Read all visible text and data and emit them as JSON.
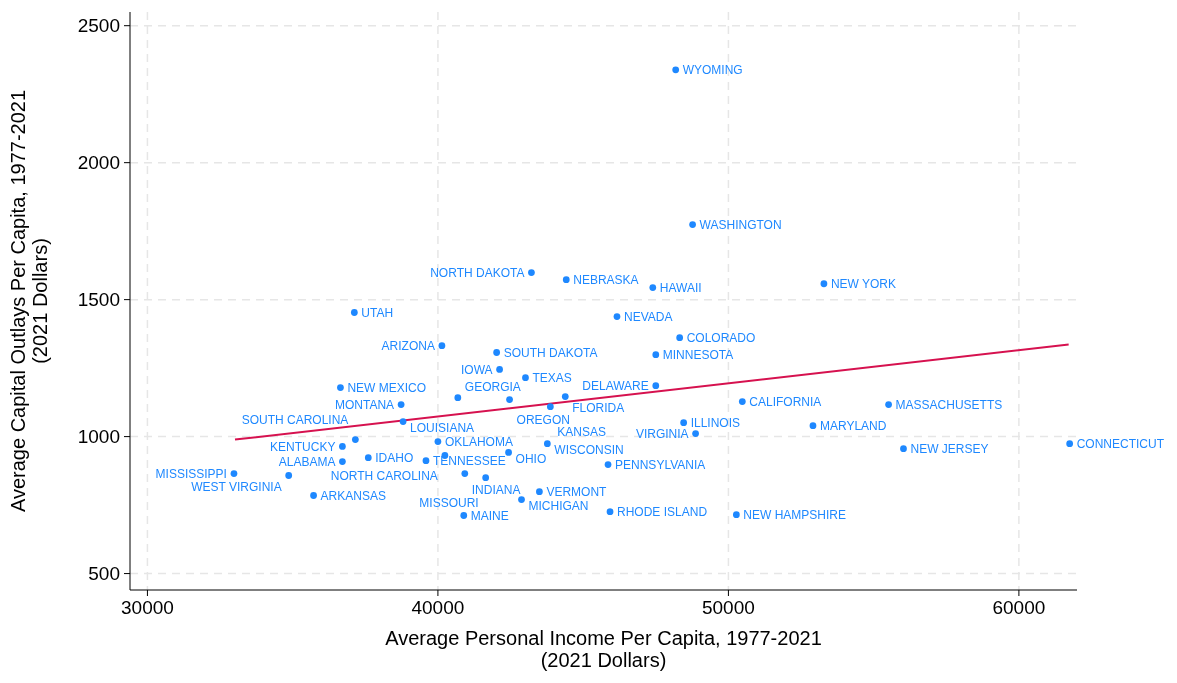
{
  "chart_data": {
    "type": "scatter",
    "xlabel": "Average Personal Income Per Capita, 1977-2021\n(2021 Dollars)",
    "ylabel": "Average Capital Outlays Per Capita, 1977-2021\n(2021 Dollars)",
    "xlim": [
      29400,
      62000
    ],
    "xticks": [
      30000,
      40000,
      50000,
      60000
    ],
    "ylim": [
      440,
      2550
    ],
    "yticks": [
      500,
      1000,
      1500,
      2000,
      2500
    ],
    "grid": true,
    "series": [
      {
        "marker": "circle",
        "color": "#1e88ff",
        "x": [
          48185,
          48767,
          43219,
          44418,
          47397,
          53288,
          37123,
          46164,
          48322,
          40137,
          42021,
          47500,
          42123,
          43014,
          36644,
          47500,
          40685,
          42466,
          44384,
          43870,
          50479,
          55514,
          38733,
          38801,
          48459,
          52911,
          48870,
          37158,
          40000,
          43767,
          61747,
          36712,
          40240,
          42432,
          56027,
          39589,
          37603,
          36712,
          45856,
          32979,
          34863,
          40925,
          41644,
          43493,
          42877,
          35719,
          40890,
          45925,
          50274
        ],
        "values": [
          2339,
          1774,
          1599,
          1573,
          1544,
          1558,
          1453,
          1438,
          1361,
          1332,
          1307,
          1299,
          1245,
          1215,
          1179,
          1186,
          1142,
          1135,
          1146,
          1109,
          1128,
          1117,
          1117,
          1055,
          1051,
          1040,
          1011,
          989,
          982,
          974,
          974,
          964,
          931,
          942,
          956,
          912,
          923,
          909,
          898,
          865,
          858,
          865,
          850,
          799,
          770,
          785,
          712,
          726,
          715
        ],
        "value_labels": [
          "WYOMING",
          "WASHINGTON",
          "NORTH DAKOTA",
          "NEBRASKA",
          "HAWAII",
          "NEW YORK",
          "UTAH",
          "NEVADA",
          "COLORADO",
          "ARIZONA",
          "SOUTH DAKOTA",
          "MINNESOTA",
          "IOWA",
          "TEXAS",
          "NEW MEXICO",
          "DELAWARE",
          "GEORGIA",
          "OREGON",
          "FLORIDA",
          "KANSAS",
          "CALIFORNIA",
          "MASSACHUSETTS",
          "MONTANA",
          "LOUISIANA",
          "ILLINOIS",
          "MARYLAND",
          "VIRGINIA",
          "SOUTH CAROLINA",
          "OKLAHOMA",
          "WISCONSIN",
          "CONNECTICUT",
          "KENTUCKY",
          "NORTH CAROLINA",
          "OHIO",
          "NEW JERSEY",
          "TENNESSEE",
          "IDAHO",
          "ALABAMA",
          "PENNSYLVANIA",
          "MISSISSIPPI",
          "WEST VIRGINIA",
          "INDIANA",
          "MISSOURI",
          "VERMONT",
          "MICHIGAN",
          "ARKANSAS",
          "MAINE",
          "RHODE ISLAND",
          "NEW HAMPSHIRE"
        ]
      },
      {
        "type": "line",
        "color": "#d6114f",
        "x": [
          33014,
          61713
        ],
        "values": [
          989,
          1336
        ]
      }
    ]
  }
}
